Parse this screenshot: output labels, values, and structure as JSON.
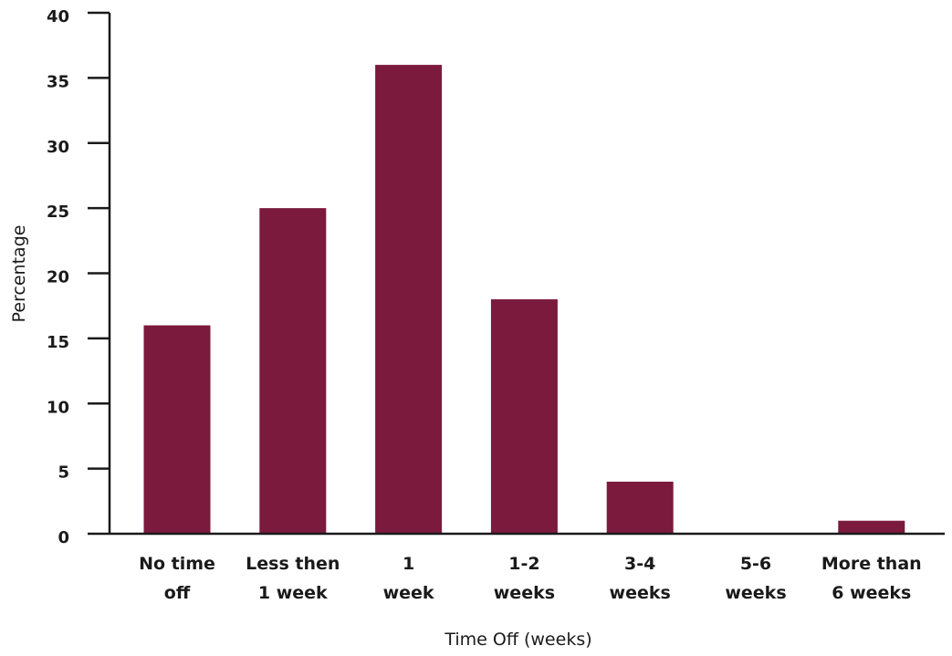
{
  "chart_data": {
    "type": "bar",
    "categories": [
      [
        "No time",
        "off"
      ],
      [
        "Less then",
        "1 week"
      ],
      [
        "1",
        "week"
      ],
      [
        "1-2",
        "weeks"
      ],
      [
        "3-4",
        "weeks"
      ],
      [
        "5-6",
        "weeks"
      ],
      [
        "More than",
        "6 weeks"
      ]
    ],
    "values": [
      16,
      25,
      36,
      18,
      4,
      0,
      1
    ],
    "xlabel": "Time Off (weeks)",
    "ylabel": "Percentage",
    "ylim": [
      0,
      40
    ],
    "yticks": [
      0,
      5,
      10,
      15,
      20,
      25,
      30,
      35,
      40
    ],
    "grid": false,
    "bar_color": "#7b1a3c",
    "axis_color": "#1a1a1a"
  }
}
